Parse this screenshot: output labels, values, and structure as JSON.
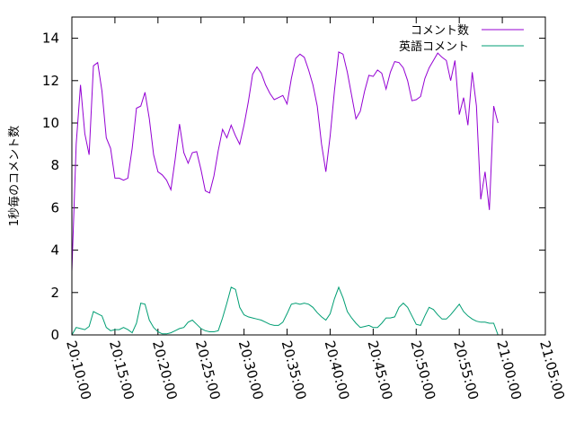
{
  "chart_data": {
    "type": "line",
    "ylabel": "1秒毎のコメント数",
    "xlabel": "",
    "ylim": [
      0,
      15
    ],
    "y_ticks": [
      0,
      2,
      4,
      6,
      8,
      10,
      12,
      14
    ],
    "x_range": [
      "20:10:00",
      "21:05:00"
    ],
    "x_ticks": [
      "20:10:00",
      "20:15:00",
      "20:20:00",
      "20:25:00",
      "20:30:00",
      "20:35:00",
      "20:40:00",
      "20:45:00",
      "20:50:00",
      "20:55:00",
      "21:00:00",
      "21:05:00"
    ],
    "legend_position": "top-right",
    "grid": false,
    "series": [
      {
        "name": "コメント数",
        "color": "#9400d3",
        "points": [
          [
            "20:10:00",
            3.0
          ],
          [
            "20:10:30",
            9.0
          ],
          [
            "20:11:00",
            11.8
          ],
          [
            "20:11:30",
            9.5
          ],
          [
            "20:12:00",
            8.5
          ],
          [
            "20:12:30",
            12.7
          ],
          [
            "20:13:00",
            12.85
          ],
          [
            "20:13:30",
            11.5
          ],
          [
            "20:14:00",
            9.3
          ],
          [
            "20:14:30",
            8.8
          ],
          [
            "20:15:00",
            7.4
          ],
          [
            "20:15:30",
            7.4
          ],
          [
            "20:16:00",
            7.3
          ],
          [
            "20:16:30",
            7.4
          ],
          [
            "20:17:00",
            8.8
          ],
          [
            "20:17:30",
            10.7
          ],
          [
            "20:18:00",
            10.8
          ],
          [
            "20:18:30",
            11.45
          ],
          [
            "20:19:00",
            10.2
          ],
          [
            "20:19:30",
            8.5
          ],
          [
            "20:20:00",
            7.7
          ],
          [
            "20:20:30",
            7.55
          ],
          [
            "20:21:00",
            7.3
          ],
          [
            "20:21:30",
            6.85
          ],
          [
            "20:22:00",
            8.3
          ],
          [
            "20:22:30",
            9.95
          ],
          [
            "20:23:00",
            8.6
          ],
          [
            "20:23:30",
            8.1
          ],
          [
            "20:24:00",
            8.6
          ],
          [
            "20:24:30",
            8.65
          ],
          [
            "20:25:00",
            7.8
          ],
          [
            "20:25:30",
            6.8
          ],
          [
            "20:26:00",
            6.7
          ],
          [
            "20:26:30",
            7.5
          ],
          [
            "20:27:00",
            8.7
          ],
          [
            "20:27:30",
            9.7
          ],
          [
            "20:28:00",
            9.3
          ],
          [
            "20:28:30",
            9.9
          ],
          [
            "20:29:00",
            9.4
          ],
          [
            "20:29:30",
            9.0
          ],
          [
            "20:30:00",
            9.9
          ],
          [
            "20:30:30",
            11.0
          ],
          [
            "20:31:00",
            12.3
          ],
          [
            "20:31:30",
            12.65
          ],
          [
            "20:32:00",
            12.35
          ],
          [
            "20:32:30",
            11.8
          ],
          [
            "20:33:00",
            11.4
          ],
          [
            "20:33:30",
            11.1
          ],
          [
            "20:34:00",
            11.2
          ],
          [
            "20:34:30",
            11.3
          ],
          [
            "20:35:00",
            10.9
          ],
          [
            "20:35:30",
            12.1
          ],
          [
            "20:36:00",
            13.05
          ],
          [
            "20:36:30",
            13.25
          ],
          [
            "20:37:00",
            13.1
          ],
          [
            "20:37:30",
            12.5
          ],
          [
            "20:38:00",
            11.8
          ],
          [
            "20:38:30",
            10.8
          ],
          [
            "20:39:00",
            9.0
          ],
          [
            "20:39:30",
            7.7
          ],
          [
            "20:40:00",
            9.4
          ],
          [
            "20:40:30",
            11.5
          ],
          [
            "20:41:00",
            13.35
          ],
          [
            "20:41:30",
            13.25
          ],
          [
            "20:42:00",
            12.4
          ],
          [
            "20:42:30",
            11.3
          ],
          [
            "20:43:00",
            10.2
          ],
          [
            "20:43:30",
            10.55
          ],
          [
            "20:44:00",
            11.5
          ],
          [
            "20:44:30",
            12.25
          ],
          [
            "20:45:00",
            12.2
          ],
          [
            "20:45:30",
            12.5
          ],
          [
            "20:46:00",
            12.35
          ],
          [
            "20:46:30",
            11.6
          ],
          [
            "20:47:00",
            12.4
          ],
          [
            "20:47:30",
            12.9
          ],
          [
            "20:48:00",
            12.85
          ],
          [
            "20:48:30",
            12.6
          ],
          [
            "20:49:00",
            12.0
          ],
          [
            "20:49:30",
            11.05
          ],
          [
            "20:50:00",
            11.1
          ],
          [
            "20:50:30",
            11.25
          ],
          [
            "20:51:00",
            12.1
          ],
          [
            "20:51:30",
            12.6
          ],
          [
            "20:52:00",
            12.95
          ],
          [
            "20:52:30",
            13.3
          ],
          [
            "20:53:00",
            13.1
          ],
          [
            "20:53:30",
            12.95
          ],
          [
            "20:54:00",
            12.0
          ],
          [
            "20:54:30",
            12.95
          ],
          [
            "20:55:00",
            10.4
          ],
          [
            "20:55:30",
            11.2
          ],
          [
            "20:56:00",
            9.9
          ],
          [
            "20:56:30",
            12.4
          ],
          [
            "20:57:00",
            10.8
          ],
          [
            "20:57:30",
            6.4
          ],
          [
            "20:58:00",
            7.7
          ],
          [
            "20:58:30",
            5.9
          ],
          [
            "20:59:00",
            10.8
          ],
          [
            "20:59:30",
            10.0
          ]
        ]
      },
      {
        "name": "英語コメント",
        "color": "#009e73",
        "points": [
          [
            "20:10:00",
            0.0
          ],
          [
            "20:10:30",
            0.35
          ],
          [
            "20:11:00",
            0.3
          ],
          [
            "20:11:30",
            0.25
          ],
          [
            "20:12:00",
            0.4
          ],
          [
            "20:12:30",
            1.1
          ],
          [
            "20:13:00",
            1.0
          ],
          [
            "20:13:30",
            0.9
          ],
          [
            "20:14:00",
            0.35
          ],
          [
            "20:14:30",
            0.2
          ],
          [
            "20:15:00",
            0.25
          ],
          [
            "20:15:30",
            0.25
          ],
          [
            "20:16:00",
            0.35
          ],
          [
            "20:16:30",
            0.25
          ],
          [
            "20:17:00",
            0.1
          ],
          [
            "20:17:30",
            0.55
          ],
          [
            "20:18:00",
            1.5
          ],
          [
            "20:18:30",
            1.45
          ],
          [
            "20:19:00",
            0.7
          ],
          [
            "20:19:30",
            0.35
          ],
          [
            "20:20:00",
            0.15
          ],
          [
            "20:20:30",
            0.05
          ],
          [
            "20:21:00",
            0.05
          ],
          [
            "20:21:30",
            0.1
          ],
          [
            "20:22:00",
            0.2
          ],
          [
            "20:22:30",
            0.3
          ],
          [
            "20:23:00",
            0.35
          ],
          [
            "20:23:30",
            0.6
          ],
          [
            "20:24:00",
            0.7
          ],
          [
            "20:24:30",
            0.5
          ],
          [
            "20:25:00",
            0.3
          ],
          [
            "20:25:30",
            0.2
          ],
          [
            "20:26:00",
            0.15
          ],
          [
            "20:26:30",
            0.15
          ],
          [
            "20:27:00",
            0.2
          ],
          [
            "20:27:30",
            0.8
          ],
          [
            "20:28:00",
            1.5
          ],
          [
            "20:28:30",
            2.25
          ],
          [
            "20:29:00",
            2.15
          ],
          [
            "20:29:30",
            1.3
          ],
          [
            "20:30:00",
            0.95
          ],
          [
            "20:30:30",
            0.85
          ],
          [
            "20:31:00",
            0.8
          ],
          [
            "20:31:30",
            0.75
          ],
          [
            "20:32:00",
            0.7
          ],
          [
            "20:32:30",
            0.6
          ],
          [
            "20:33:00",
            0.5
          ],
          [
            "20:33:30",
            0.45
          ],
          [
            "20:34:00",
            0.45
          ],
          [
            "20:34:30",
            0.6
          ],
          [
            "20:35:00",
            1.0
          ],
          [
            "20:35:30",
            1.45
          ],
          [
            "20:36:00",
            1.5
          ],
          [
            "20:36:30",
            1.45
          ],
          [
            "20:37:00",
            1.5
          ],
          [
            "20:37:30",
            1.45
          ],
          [
            "20:38:00",
            1.3
          ],
          [
            "20:38:30",
            1.05
          ],
          [
            "20:39:00",
            0.85
          ],
          [
            "20:39:30",
            0.7
          ],
          [
            "20:40:00",
            1.0
          ],
          [
            "20:40:30",
            1.7
          ],
          [
            "20:41:00",
            2.25
          ],
          [
            "20:41:30",
            1.75
          ],
          [
            "20:42:00",
            1.1
          ],
          [
            "20:42:30",
            0.8
          ],
          [
            "20:43:00",
            0.55
          ],
          [
            "20:43:30",
            0.35
          ],
          [
            "20:44:00",
            0.4
          ],
          [
            "20:44:30",
            0.45
          ],
          [
            "20:45:00",
            0.35
          ],
          [
            "20:45:30",
            0.35
          ],
          [
            "20:46:00",
            0.55
          ],
          [
            "20:46:30",
            0.8
          ],
          [
            "20:47:00",
            0.8
          ],
          [
            "20:47:30",
            0.85
          ],
          [
            "20:48:00",
            1.3
          ],
          [
            "20:48:30",
            1.5
          ],
          [
            "20:49:00",
            1.3
          ],
          [
            "20:49:30",
            0.9
          ],
          [
            "20:50:00",
            0.5
          ],
          [
            "20:50:30",
            0.45
          ],
          [
            "20:51:00",
            0.9
          ],
          [
            "20:51:30",
            1.3
          ],
          [
            "20:52:00",
            1.2
          ],
          [
            "20:52:30",
            0.95
          ],
          [
            "20:53:00",
            0.75
          ],
          [
            "20:53:30",
            0.75
          ],
          [
            "20:54:00",
            0.95
          ],
          [
            "20:54:30",
            1.2
          ],
          [
            "20:55:00",
            1.45
          ],
          [
            "20:55:30",
            1.1
          ],
          [
            "20:56:00",
            0.9
          ],
          [
            "20:56:30",
            0.75
          ],
          [
            "20:57:00",
            0.65
          ],
          [
            "20:57:30",
            0.6
          ],
          [
            "20:58:00",
            0.6
          ],
          [
            "20:58:30",
            0.55
          ],
          [
            "20:59:00",
            0.55
          ],
          [
            "20:59:30",
            0.0
          ]
        ]
      }
    ]
  }
}
